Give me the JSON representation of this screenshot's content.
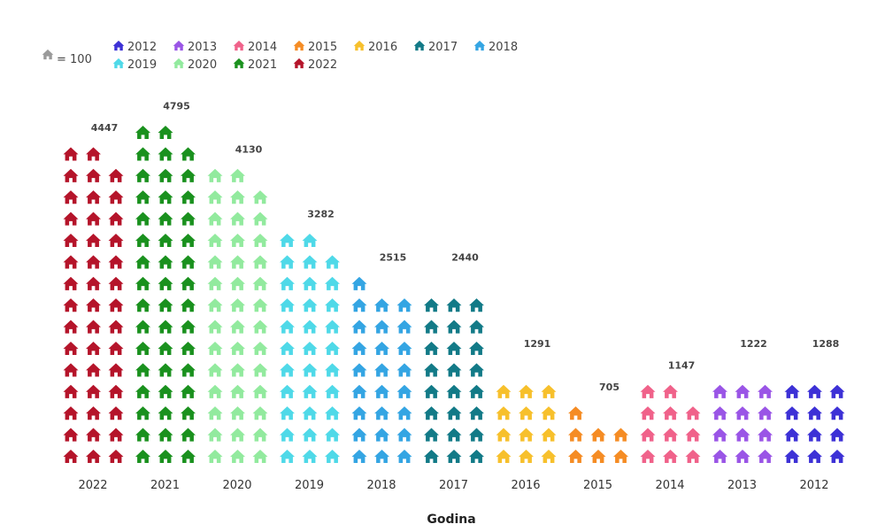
{
  "chart_data": {
    "type": "pictogram-bar",
    "unit_label": "= 100",
    "unit_value": 100,
    "icon": "house-icon",
    "xlabel": "Godina",
    "categories": [
      "2022",
      "2021",
      "2020",
      "2019",
      "2018",
      "2017",
      "2016",
      "2015",
      "2014",
      "2013",
      "2012"
    ],
    "values": [
      4447,
      4795,
      4130,
      3282,
      2515,
      2440,
      1291,
      705,
      1147,
      1222,
      1288
    ],
    "series_colors": {
      "2012": "#3d31d6",
      "2013": "#9a55e6",
      "2014": "#f0628a",
      "2015": "#f58c24",
      "2016": "#f7c02c",
      "2017": "#127a87",
      "2018": "#34a5e3",
      "2019": "#4fd9e8",
      "2020": "#92ea9e",
      "2021": "#1a911e",
      "2022": "#b5142a"
    },
    "legend": {
      "unit_icon_color": "#9a9a9a",
      "entries": [
        "2012",
        "2013",
        "2014",
        "2015",
        "2016",
        "2017",
        "2018",
        "2019",
        "2020",
        "2021",
        "2022"
      ]
    }
  }
}
